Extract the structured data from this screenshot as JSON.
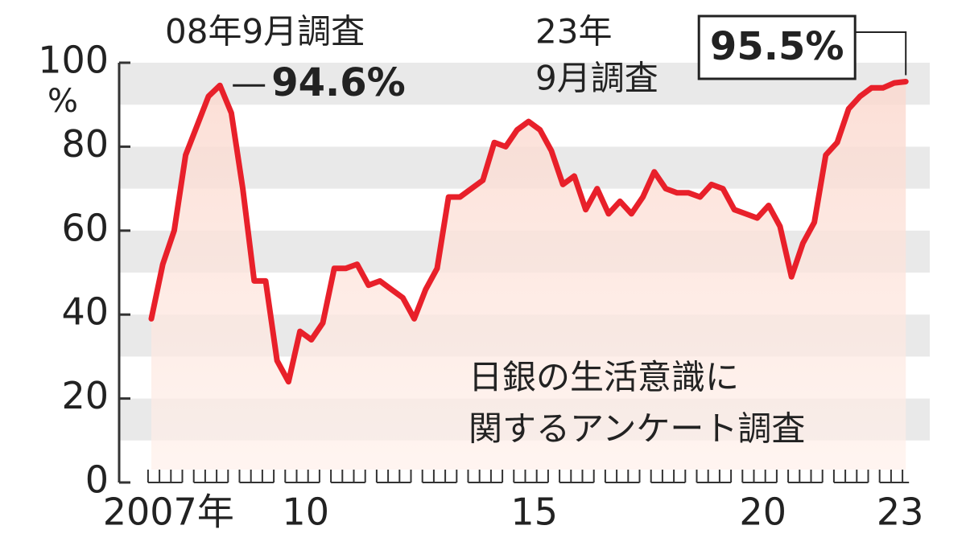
{
  "chart_data": {
    "type": "line",
    "annotations": [
      "08年9月調査",
      "23年",
      "9月調査"
    ],
    "source_note": [
      "日銀の生活意識に",
      "関するアンケート調査"
    ],
    "y_unit": "%",
    "categories": [
      null,
      "2007年",
      null,
      null,
      null,
      null,
      null,
      null,
      null,
      null,
      null,
      null,
      null,
      "10",
      null,
      null,
      null,
      null,
      null,
      null,
      null,
      null,
      null,
      null,
      null,
      null,
      null,
      null,
      null,
      null,
      null,
      null,
      null,
      "15",
      null,
      null,
      null,
      null,
      null,
      null,
      null,
      null,
      null,
      null,
      null,
      null,
      null,
      null,
      null,
      null,
      null,
      null,
      null,
      "20",
      null,
      null,
      null,
      null,
      null,
      null,
      null,
      null,
      null,
      null,
      null,
      "23",
      null
    ],
    "series": [
      {
        "color": "#e8202a",
        "values": [
          39,
          52,
          60,
          78,
          85,
          92,
          94.6,
          88,
          70,
          48,
          48,
          29,
          24,
          36,
          34,
          38,
          51,
          51,
          52,
          47,
          48,
          46,
          44,
          39,
          46,
          51,
          68,
          68,
          70,
          72,
          81,
          80,
          84,
          86,
          84,
          79,
          71,
          73,
          65,
          70,
          64,
          67,
          64,
          68,
          74,
          70,
          69,
          69,
          68,
          71,
          70,
          65,
          64,
          63,
          66,
          61,
          49,
          57,
          62,
          78,
          81,
          89,
          92,
          94,
          94,
          95.2,
          95.5
        ],
        "value_labels": [
          null,
          null,
          null,
          null,
          null,
          null,
          "94.6%",
          null,
          null,
          null,
          null,
          null,
          null,
          null,
          null,
          null,
          null,
          null,
          null,
          null,
          null,
          null,
          null,
          null,
          null,
          null,
          null,
          null,
          null,
          null,
          null,
          null,
          null,
          null,
          null,
          null,
          null,
          null,
          null,
          null,
          null,
          null,
          null,
          null,
          null,
          null,
          null,
          null,
          null,
          null,
          null,
          null,
          null,
          null,
          null,
          null,
          null,
          null,
          null,
          null,
          null,
          null,
          null,
          null,
          null,
          null,
          "95.5%"
        ]
      }
    ],
    "ylim": [
      0,
      100
    ],
    "yticks": [
      0,
      20,
      40,
      60,
      80,
      100
    ]
  }
}
